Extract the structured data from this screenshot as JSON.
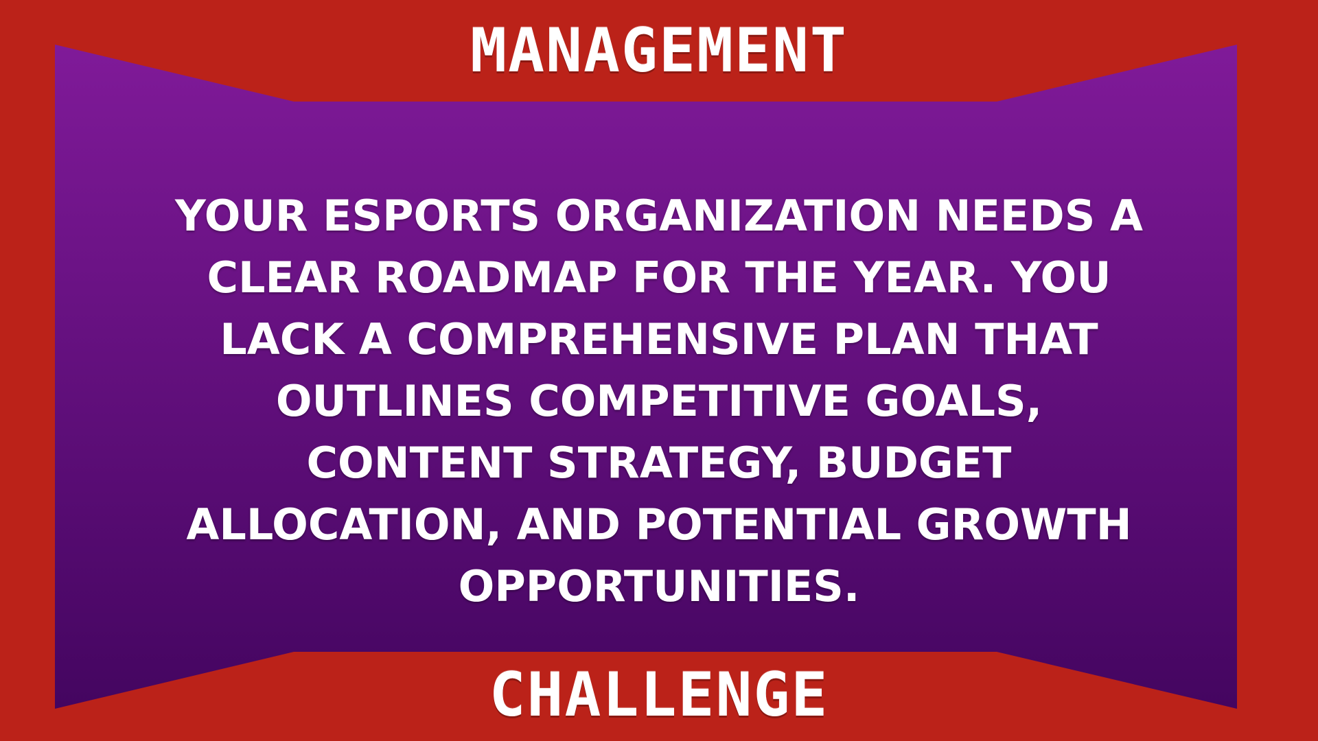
{
  "card": {
    "top_title": "MANAGEMENT",
    "bottom_title": "CHALLENGE",
    "body": "YOUR ESPORTS ORGANIZATION NEEDS A CLEAR ROADMAP FOR THE YEAR. YOU LACK A COMPREHENSIVE PLAN THAT OUTLINES COMPETITIVE GOALS, CONTENT STRATEGY, BUDGET ALLOCATION, AND POTENTIAL GROWTH OPPORTUNITIES."
  },
  "colors": {
    "frame": "#bb2219",
    "panel_top": "#801a99",
    "panel_bottom": "#440560",
    "text": "#ffffff"
  }
}
